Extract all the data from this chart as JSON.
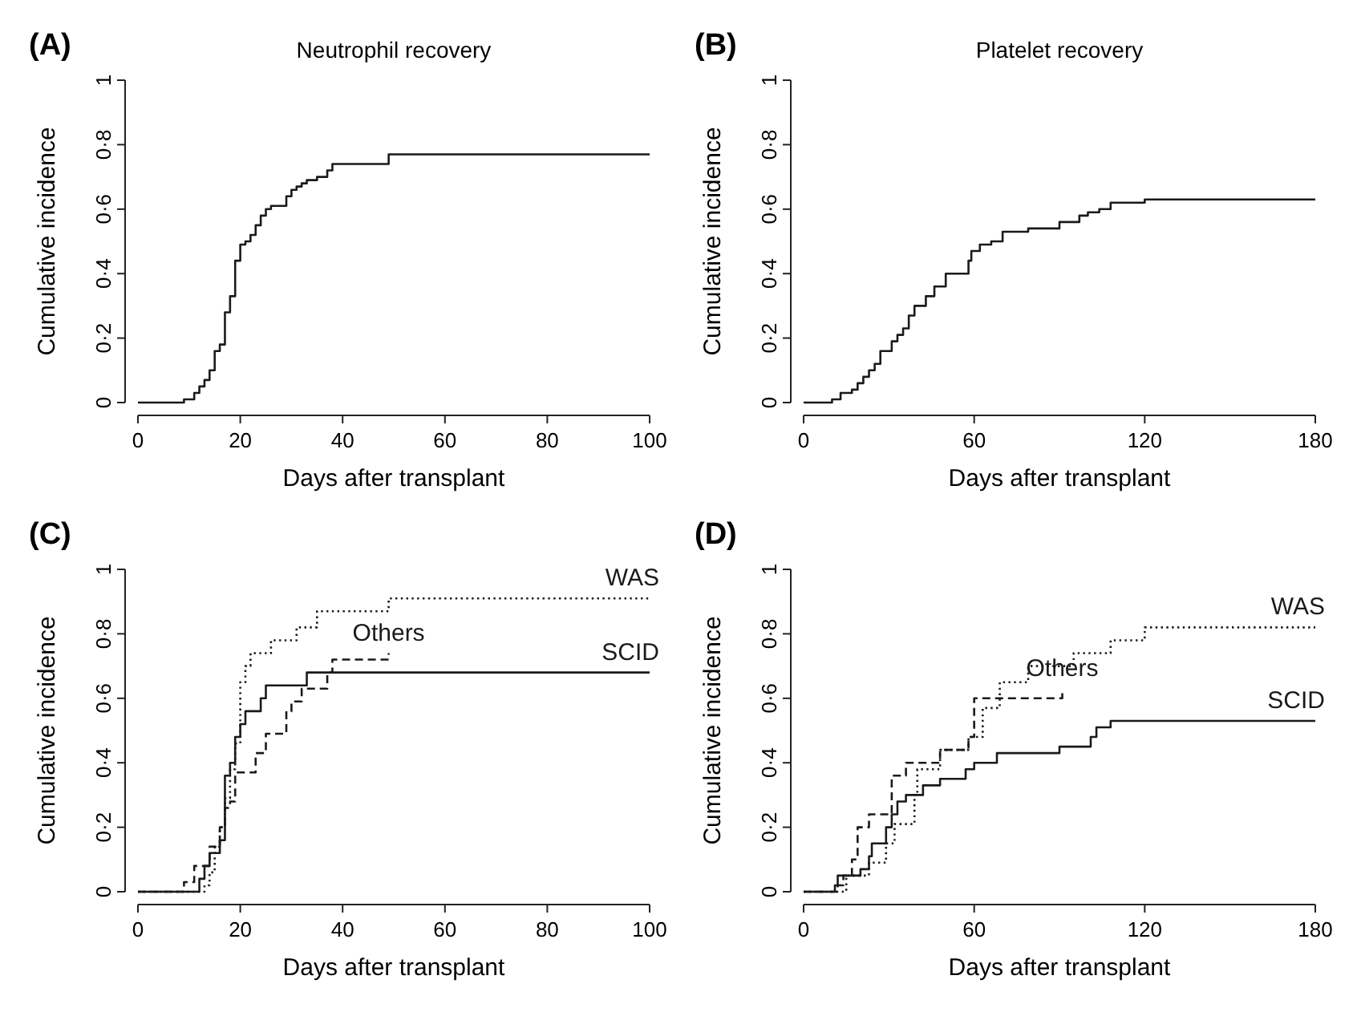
{
  "chart_data": [
    {
      "type": "step",
      "title": "Neutrophil recovery",
      "annotations": [
        "(A)"
      ],
      "xlabel": "Days after transplant",
      "ylabel": "Cumulative incidence",
      "xlim": [
        0,
        100
      ],
      "xticks": [
        0,
        20,
        40,
        60,
        80,
        100
      ],
      "ylim": [
        0,
        1
      ],
      "yticks": [
        {
          "value": 0,
          "label": "0"
        },
        {
          "value": 0.2,
          "label": "0·2"
        },
        {
          "value": 0.4,
          "label": "0·4"
        },
        {
          "value": 0.6,
          "label": "0·6"
        },
        {
          "value": 0.8,
          "label": "0·8"
        },
        {
          "value": 1,
          "label": "1"
        }
      ],
      "series": [
        {
          "color": "#1a1a1a",
          "line_style": "solid",
          "x": [
            0,
            9,
            11,
            12,
            13,
            14,
            15,
            16,
            17,
            18,
            19,
            20,
            21,
            22,
            23,
            24,
            25,
            26,
            29,
            30,
            31,
            32,
            33,
            35,
            37,
            38,
            49,
            100
          ],
          "values": [
            0,
            0.01,
            0.03,
            0.05,
            0.07,
            0.1,
            0.16,
            0.18,
            0.28,
            0.33,
            0.44,
            0.49,
            0.5,
            0.52,
            0.55,
            0.58,
            0.6,
            0.61,
            0.64,
            0.66,
            0.67,
            0.68,
            0.69,
            0.7,
            0.72,
            0.74,
            0.77,
            0.77
          ]
        }
      ]
    },
    {
      "type": "step",
      "title": "Platelet recovery",
      "annotations": [
        "(B)"
      ],
      "xlabel": "Days after transplant",
      "ylabel": "Cumulative incidence",
      "xlim": [
        0,
        180
      ],
      "xticks": [
        0,
        60,
        120,
        180
      ],
      "ylim": [
        0,
        1
      ],
      "yticks": [
        {
          "value": 0,
          "label": "0"
        },
        {
          "value": 0.2,
          "label": "0·2"
        },
        {
          "value": 0.4,
          "label": "0·4"
        },
        {
          "value": 0.6,
          "label": "0·6"
        },
        {
          "value": 0.8,
          "label": "0·8"
        },
        {
          "value": 1,
          "label": "1"
        }
      ],
      "series": [
        {
          "color": "#1a1a1a",
          "line_style": "solid",
          "x": [
            0,
            10,
            13,
            17,
            19,
            21,
            23,
            25,
            27,
            31,
            33,
            35,
            37,
            39,
            43,
            46,
            50,
            58,
            59,
            62,
            66,
            70,
            79,
            90,
            97,
            100,
            104,
            108,
            120,
            180
          ],
          "values": [
            0,
            0.01,
            0.03,
            0.04,
            0.06,
            0.08,
            0.1,
            0.12,
            0.16,
            0.19,
            0.21,
            0.23,
            0.27,
            0.3,
            0.33,
            0.36,
            0.4,
            0.44,
            0.47,
            0.49,
            0.5,
            0.53,
            0.54,
            0.56,
            0.58,
            0.59,
            0.6,
            0.62,
            0.63,
            0.63
          ]
        }
      ]
    },
    {
      "type": "step",
      "annotations": [
        "(C)"
      ],
      "xlabel": "Days after transplant",
      "ylabel": "Cumulative incidence",
      "xlim": [
        0,
        100
      ],
      "xticks": [
        0,
        20,
        40,
        60,
        80,
        100
      ],
      "ylim": [
        0,
        1
      ],
      "yticks": [
        {
          "value": 0,
          "label": "0"
        },
        {
          "value": 0.2,
          "label": "0·2"
        },
        {
          "value": 0.4,
          "label": "0·4"
        },
        {
          "value": 0.6,
          "label": "0·6"
        },
        {
          "value": 0.8,
          "label": "0·8"
        },
        {
          "value": 1,
          "label": "1"
        }
      ],
      "series": [
        {
          "name": "WAS",
          "color": "#1a1a1a",
          "line_style": "dotted",
          "x": [
            0,
            13,
            14,
            15,
            16,
            17,
            18,
            19,
            20,
            21,
            22,
            26,
            31,
            35,
            49,
            100
          ],
          "values": [
            0,
            0.02,
            0.06,
            0.14,
            0.2,
            0.29,
            0.38,
            0.46,
            0.65,
            0.7,
            0.74,
            0.78,
            0.82,
            0.87,
            0.91,
            0.91
          ]
        },
        {
          "name": "Others",
          "color": "#1a1a1a",
          "line_style": "dashed",
          "x": [
            0,
            9,
            11,
            14,
            16,
            17,
            18,
            19,
            23,
            25,
            29,
            30,
            32,
            37,
            38,
            49
          ],
          "values": [
            0,
            0.03,
            0.08,
            0.14,
            0.2,
            0.26,
            0.28,
            0.37,
            0.43,
            0.49,
            0.56,
            0.59,
            0.63,
            0.68,
            0.72,
            0.74
          ]
        },
        {
          "name": "SCID",
          "color": "#1a1a1a",
          "line_style": "solid",
          "x": [
            0,
            12,
            13,
            14,
            16,
            17,
            18,
            19,
            20,
            21,
            24,
            25,
            33,
            100
          ],
          "values": [
            0,
            0.04,
            0.08,
            0.12,
            0.16,
            0.36,
            0.4,
            0.48,
            0.52,
            0.56,
            0.6,
            0.64,
            0.68,
            0.68
          ]
        }
      ]
    },
    {
      "type": "step",
      "annotations": [
        "(D)"
      ],
      "xlabel": "Days after transplant",
      "ylabel": "Cumulative incidence",
      "xlim": [
        0,
        180
      ],
      "xticks": [
        0,
        60,
        120,
        180
      ],
      "ylim": [
        0,
        1
      ],
      "yticks": [
        {
          "value": 0,
          "label": "0"
        },
        {
          "value": 0.2,
          "label": "0·2"
        },
        {
          "value": 0.4,
          "label": "0·4"
        },
        {
          "value": 0.6,
          "label": "0·6"
        },
        {
          "value": 0.8,
          "label": "0·8"
        },
        {
          "value": 1,
          "label": "1"
        }
      ],
      "series": [
        {
          "name": "WAS",
          "color": "#1a1a1a",
          "line_style": "dotted",
          "x": [
            0,
            15,
            23,
            29,
            32,
            39,
            40,
            48,
            58,
            63,
            69,
            79,
            95,
            108,
            120,
            180
          ],
          "values": [
            0,
            0.05,
            0.09,
            0.15,
            0.21,
            0.3,
            0.38,
            0.44,
            0.48,
            0.57,
            0.65,
            0.7,
            0.74,
            0.78,
            0.82,
            0.82
          ]
        },
        {
          "name": "Others",
          "color": "#1a1a1a",
          "line_style": "dashed",
          "x": [
            0,
            12,
            14,
            17,
            19,
            23,
            31,
            36,
            48,
            58,
            60,
            91
          ],
          "values": [
            0,
            0.02,
            0.05,
            0.1,
            0.2,
            0.24,
            0.36,
            0.4,
            0.44,
            0.48,
            0.6,
            0.63
          ]
        },
        {
          "name": "SCID",
          "color": "#1a1a1a",
          "line_style": "solid",
          "x": [
            0,
            11,
            12,
            20,
            23,
            24,
            29,
            31,
            33,
            36,
            42,
            48,
            57,
            60,
            68,
            90,
            101,
            103,
            108,
            180
          ],
          "values": [
            0,
            0.02,
            0.05,
            0.07,
            0.11,
            0.15,
            0.2,
            0.24,
            0.28,
            0.3,
            0.33,
            0.35,
            0.38,
            0.4,
            0.43,
            0.45,
            0.48,
            0.51,
            0.53,
            0.53
          ]
        }
      ]
    }
  ]
}
